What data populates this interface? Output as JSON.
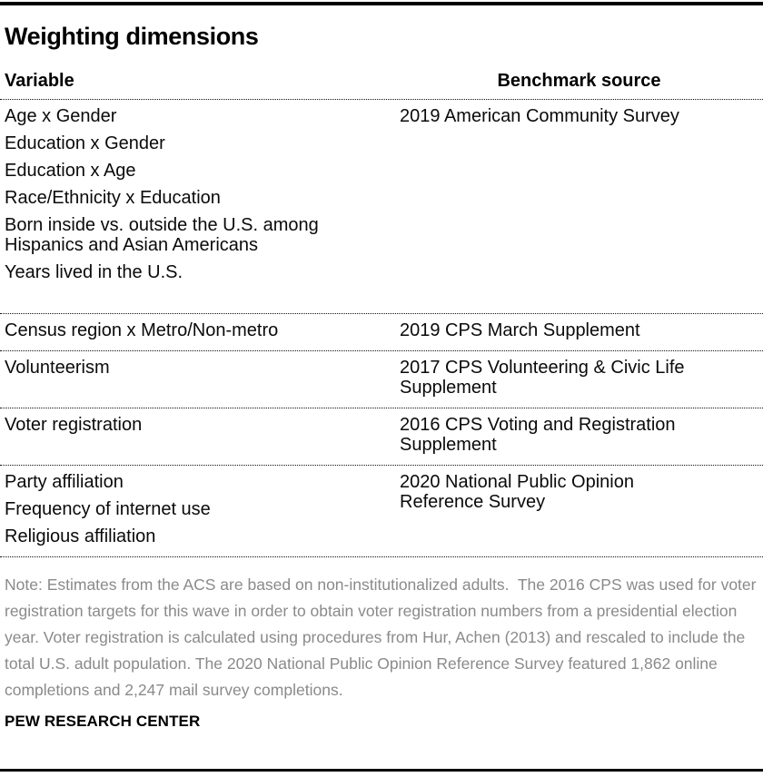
{
  "page": {
    "title": "Weighting dimensions",
    "source_label": "PEW RESEARCH CENTER"
  },
  "table": {
    "headers": {
      "variable": "Variable",
      "benchmark": "Benchmark source"
    },
    "rows": [
      {
        "variables": [
          "Age x Gender",
          "Education x Gender",
          "Education x Age",
          "Race/Ethnicity x Education",
          "Born inside vs. outside the U.S. among Hispanics and Asian Americans",
          "Years lived in the U.S."
        ],
        "benchmark": "2019 American Community Survey"
      },
      {
        "variables": [
          "Census region x Metro/Non-metro"
        ],
        "benchmark": "2019 CPS March Supplement"
      },
      {
        "variables": [
          "Volunteerism"
        ],
        "benchmark": "2017 CPS Volunteering & Civic Life Supplement"
      },
      {
        "variables": [
          "Voter registration"
        ],
        "benchmark": "2016 CPS Voting and Registration Supplement"
      },
      {
        "variables": [
          "Party affiliation",
          "Frequency of internet use",
          "Religious affiliation"
        ],
        "benchmark": "2020 National Public Opinion Reference Survey"
      }
    ]
  },
  "note": "Note: Estimates from the ACS are based on non-institutionalized adults.  The 2016 CPS was used for voter registration targets for this wave in order to obtain voter registration numbers from a presidential election year. Voter registration is calculated using procedures from Hur, Achen (2013) and rescaled to include the total U.S. adult population. The 2020 National Public Opinion Reference Survey featured 1,862 online completions and 2,247 mail survey completions.",
  "colors": {
    "text": "#000000",
    "note_gray": "#8a8a8a",
    "divider": "#111111",
    "rule": "#000000"
  }
}
